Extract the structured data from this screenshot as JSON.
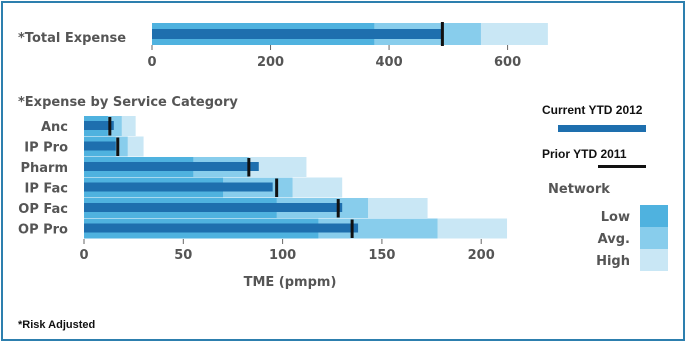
{
  "colors": {
    "low": "#4fb2df",
    "avg": "#88cdec",
    "high": "#c9e7f5",
    "current": "#1e6fae",
    "prior_marker": "#111111",
    "text": "#555555",
    "border": "#2d7fae"
  },
  "chart_data": [
    {
      "type": "bar",
      "subtype": "bullet",
      "title": "*Total Expense",
      "xlim": [
        0,
        680
      ],
      "x_ticks": [
        "0",
        "200",
        "400",
        "600"
      ],
      "x_tick_values": [
        0,
        200,
        400,
        600
      ],
      "categories": [
        "Total"
      ],
      "series": [
        {
          "name": "Low",
          "values": [
            375
          ]
        },
        {
          "name": "Avg.",
          "values": [
            555
          ]
        },
        {
          "name": "High",
          "values": [
            668
          ]
        },
        {
          "name": "Current YTD 2012",
          "values": [
            490
          ]
        },
        {
          "name": "Prior YTD 2011",
          "values": [
            490
          ]
        }
      ]
    },
    {
      "type": "bar",
      "subtype": "bullet",
      "title": "*Expense by Service Category",
      "xlabel": "TME (pmpm)",
      "xlim": [
        0,
        215
      ],
      "x_ticks": [
        "0",
        "50",
        "100",
        "150",
        "200"
      ],
      "x_tick_values": [
        0,
        50,
        100,
        150,
        200
      ],
      "categories": [
        "Anc",
        "IP Pro",
        "Pharm",
        "IP Fac",
        "OP Fac",
        "OP Pro"
      ],
      "series": [
        {
          "name": "Low",
          "values": [
            12,
            16,
            55,
            70,
            97,
            118
          ]
        },
        {
          "name": "Avg.",
          "values": [
            19,
            22,
            83,
            105,
            143,
            178
          ]
        },
        {
          "name": "High",
          "values": [
            26,
            30,
            112,
            130,
            173,
            213
          ]
        },
        {
          "name": "Current YTD 2012",
          "values": [
            15,
            16,
            88,
            95,
            130,
            138
          ]
        },
        {
          "name": "Prior YTD 2011",
          "values": [
            13,
            17,
            83,
            97,
            128,
            135
          ]
        }
      ]
    }
  ],
  "legend": {
    "current_label": "Current YTD 2012",
    "prior_label": "Prior YTD 2011",
    "network_title": "Network",
    "low_label": "Low",
    "avg_label": "Avg.",
    "high_label": "High"
  },
  "footnote": "*Risk Adjusted"
}
